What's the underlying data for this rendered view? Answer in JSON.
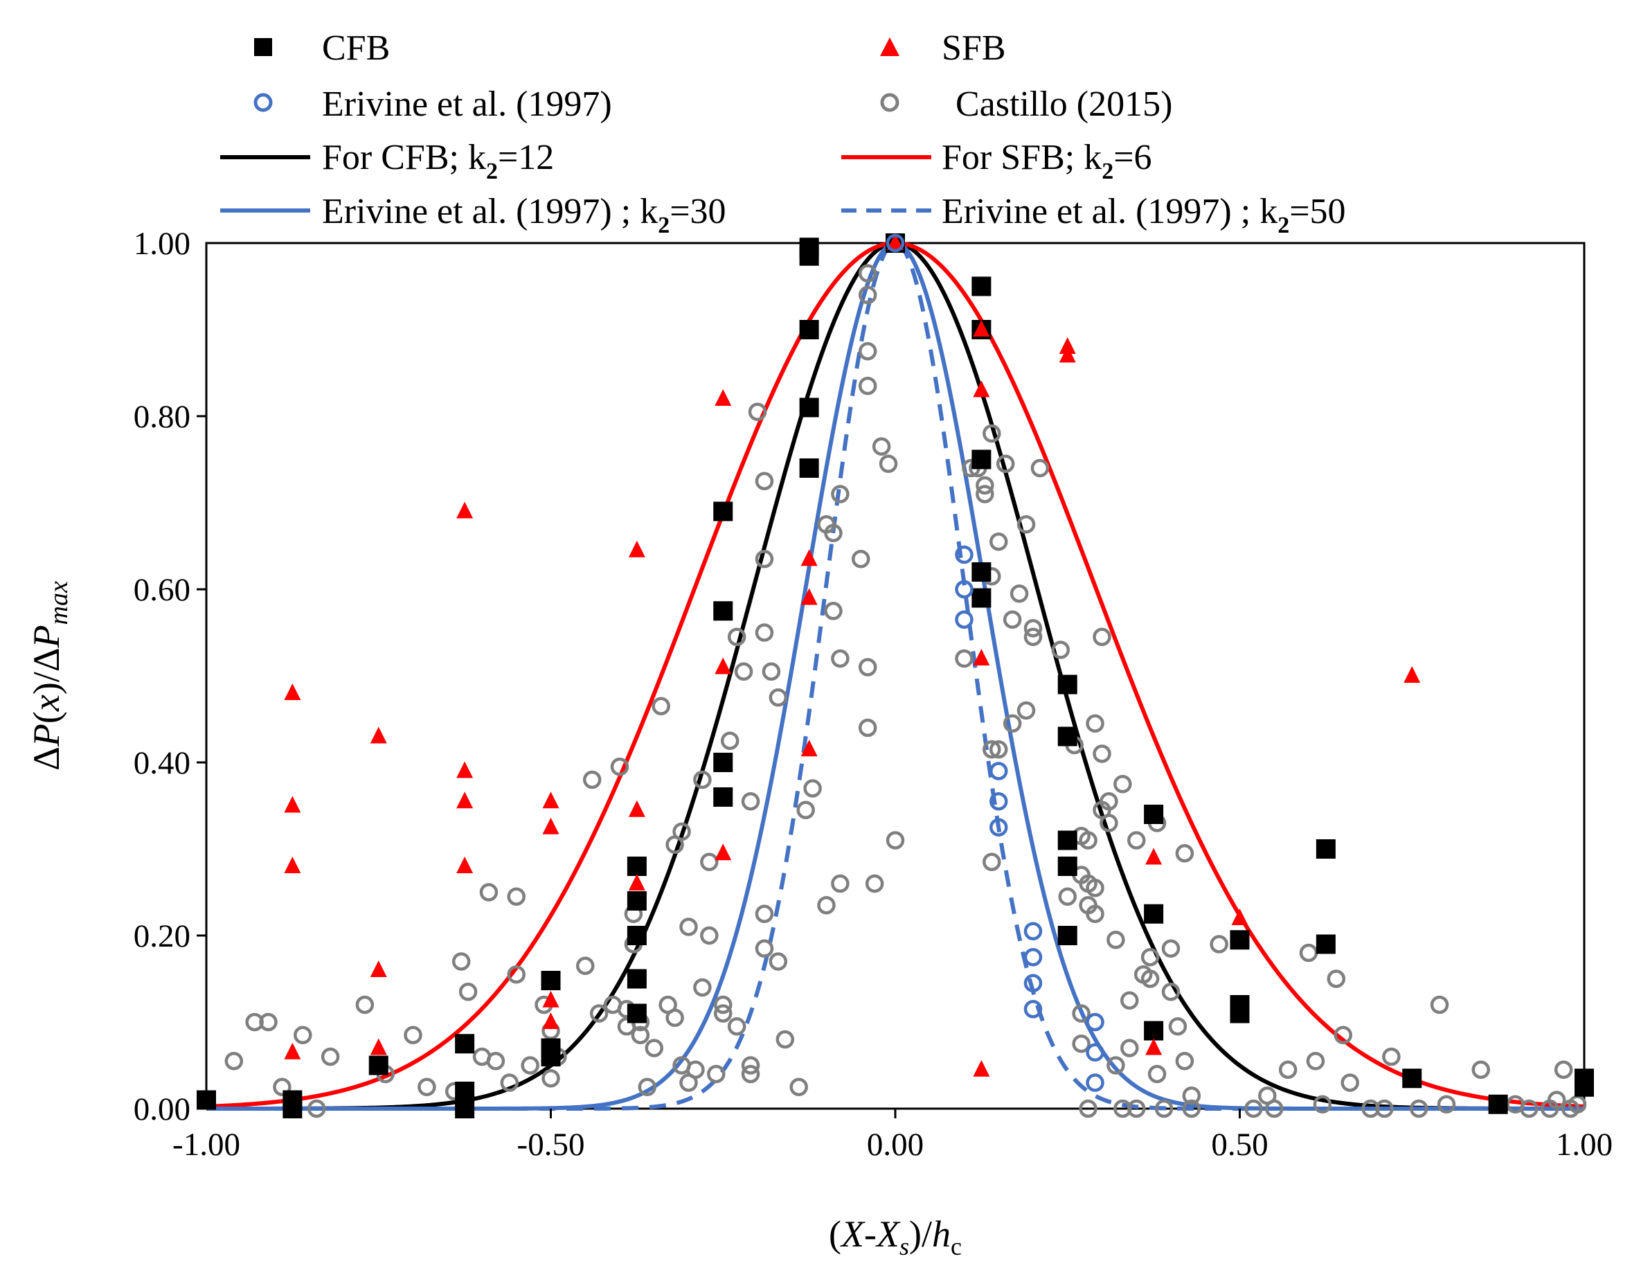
{
  "colors": {
    "cfb": "#000000",
    "sfb": "#ff0000",
    "erivine": "#4472c4",
    "castillo": "#7f7f7f"
  },
  "legend": {
    "cfb": "CFB",
    "sfb": "SFB",
    "erivine_data": "Erivine et al. (1997)",
    "castillo_data": "Castillo (2015)",
    "cfb_fit": {
      "text": "For CFB; k",
      "sub": "2",
      "rest": "=12"
    },
    "sfb_fit": {
      "text": "For SFB; k",
      "sub": "2",
      "rest": "=6"
    },
    "erivine30": {
      "text": "Erivine et al. (1997) ; k",
      "sub": "2",
      "rest": "=30"
    },
    "erivine50": {
      "text": "Erivine et al. (1997) ; k",
      "sub": "2",
      "rest": "=50"
    }
  },
  "chart_data": {
    "type": "scatter",
    "xlabel": "(X-Xs)/hc",
    "ylabel": "ΔP(x)/ΔPmax",
    "xlim": [
      -1.0,
      1.0
    ],
    "ylim": [
      0.0,
      1.0
    ],
    "xticks": [
      "-1.00",
      "-0.50",
      "0.00",
      "0.50",
      "1.00"
    ],
    "yticks": [
      "0.00",
      "0.20",
      "0.40",
      "0.60",
      "0.80",
      "1.00"
    ],
    "grid": false,
    "legend_position": "top",
    "series": [
      {
        "name": "CFB",
        "kind": "markers",
        "marker": "square",
        "color": "#000000",
        "points": [
          [
            -1.0,
            0.01
          ],
          [
            -0.875,
            0.0
          ],
          [
            -0.875,
            0.01
          ],
          [
            -0.75,
            0.05
          ],
          [
            -0.625,
            0.0
          ],
          [
            -0.625,
            0.02
          ],
          [
            -0.625,
            0.075
          ],
          [
            -0.5,
            0.06
          ],
          [
            -0.5,
            0.07
          ],
          [
            -0.5,
            0.148
          ],
          [
            -0.375,
            0.11
          ],
          [
            -0.375,
            0.15
          ],
          [
            -0.375,
            0.2
          ],
          [
            -0.375,
            0.24
          ],
          [
            -0.375,
            0.28
          ],
          [
            -0.25,
            0.36
          ],
          [
            -0.25,
            0.4
          ],
          [
            -0.25,
            0.575
          ],
          [
            -0.25,
            0.69
          ],
          [
            -0.125,
            0.74
          ],
          [
            -0.125,
            0.81
          ],
          [
            -0.125,
            0.9
          ],
          [
            -0.125,
            0.985
          ],
          [
            -0.125,
            0.995
          ],
          [
            0.0,
            1.0
          ],
          [
            0.125,
            0.59
          ],
          [
            0.125,
            0.62
          ],
          [
            0.125,
            0.75
          ],
          [
            0.125,
            0.9
          ],
          [
            0.125,
            0.95
          ],
          [
            0.25,
            0.2
          ],
          [
            0.25,
            0.28
          ],
          [
            0.25,
            0.31
          ],
          [
            0.25,
            0.43
          ],
          [
            0.25,
            0.49
          ],
          [
            0.375,
            0.09
          ],
          [
            0.375,
            0.225
          ],
          [
            0.375,
            0.34
          ],
          [
            0.5,
            0.11
          ],
          [
            0.5,
            0.12
          ],
          [
            0.5,
            0.195
          ],
          [
            0.625,
            0.19
          ],
          [
            0.625,
            0.3
          ],
          [
            0.75,
            0.035
          ],
          [
            0.875,
            0.005
          ],
          [
            1.0,
            0.025
          ],
          [
            1.0,
            0.035
          ]
        ]
      },
      {
        "name": "SFB",
        "kind": "markers",
        "marker": "triangle",
        "color": "#ff0000",
        "points": [
          [
            -0.875,
            0.065
          ],
          [
            -0.875,
            0.28
          ],
          [
            -0.875,
            0.35
          ],
          [
            -0.875,
            0.48
          ],
          [
            -0.75,
            0.07
          ],
          [
            -0.75,
            0.16
          ],
          [
            -0.75,
            0.43
          ],
          [
            -0.625,
            0.28
          ],
          [
            -0.625,
            0.355
          ],
          [
            -0.625,
            0.39
          ],
          [
            -0.625,
            0.69
          ],
          [
            -0.5,
            0.1
          ],
          [
            -0.5,
            0.125
          ],
          [
            -0.5,
            0.325
          ],
          [
            -0.5,
            0.355
          ],
          [
            -0.375,
            0.26
          ],
          [
            -0.375,
            0.345
          ],
          [
            -0.375,
            0.645
          ],
          [
            -0.25,
            0.295
          ],
          [
            -0.25,
            0.51
          ],
          [
            -0.25,
            0.82
          ],
          [
            -0.125,
            0.415
          ],
          [
            -0.125,
            0.59
          ],
          [
            -0.125,
            0.635
          ],
          [
            0.0,
            1.0
          ],
          [
            0.125,
            0.045
          ],
          [
            0.125,
            0.52
          ],
          [
            0.125,
            0.83
          ],
          [
            0.125,
            0.9
          ],
          [
            0.25,
            0.87
          ],
          [
            0.25,
            0.88
          ],
          [
            0.375,
            0.07
          ],
          [
            0.375,
            0.29
          ],
          [
            0.5,
            0.22
          ],
          [
            0.75,
            0.5
          ]
        ]
      },
      {
        "name": "Erivine et al. (1997)",
        "kind": "markers",
        "marker": "circle-open",
        "color": "#4472c4",
        "points": [
          [
            0.0,
            1.0
          ],
          [
            0.1,
            0.64
          ],
          [
            0.1,
            0.6
          ],
          [
            0.1,
            0.565
          ],
          [
            0.15,
            0.39
          ],
          [
            0.15,
            0.355
          ],
          [
            0.15,
            0.325
          ],
          [
            0.2,
            0.205
          ],
          [
            0.2,
            0.175
          ],
          [
            0.2,
            0.145
          ],
          [
            0.2,
            0.115
          ],
          [
            0.29,
            0.1
          ],
          [
            0.29,
            0.065
          ],
          [
            0.29,
            0.03
          ]
        ]
      },
      {
        "name": "Castillo (2015)",
        "kind": "markers",
        "marker": "circle-open",
        "color": "#7f7f7f",
        "points": [
          [
            -0.96,
            0.055
          ],
          [
            -0.93,
            0.1
          ],
          [
            -0.91,
            0.1
          ],
          [
            -0.89,
            0.025
          ],
          [
            -0.86,
            0.085
          ],
          [
            -0.84,
            0.0
          ],
          [
            -0.82,
            0.06
          ],
          [
            -0.77,
            0.12
          ],
          [
            -0.74,
            0.04
          ],
          [
            -0.7,
            0.085
          ],
          [
            -0.68,
            0.025
          ],
          [
            -0.64,
            0.02
          ],
          [
            -0.63,
            0.17
          ],
          [
            -0.62,
            0.135
          ],
          [
            -0.6,
            0.06
          ],
          [
            -0.59,
            0.25
          ],
          [
            -0.58,
            0.055
          ],
          [
            -0.56,
            0.03
          ],
          [
            -0.55,
            0.245
          ],
          [
            -0.55,
            0.155
          ],
          [
            -0.53,
            0.05
          ],
          [
            -0.51,
            0.12
          ],
          [
            -0.5,
            0.09
          ],
          [
            -0.5,
            0.035
          ],
          [
            -0.49,
            0.06
          ],
          [
            -0.45,
            0.165
          ],
          [
            -0.44,
            0.38
          ],
          [
            -0.43,
            0.11
          ],
          [
            -0.41,
            0.12
          ],
          [
            -0.4,
            0.395
          ],
          [
            -0.39,
            0.115
          ],
          [
            -0.39,
            0.095
          ],
          [
            -0.38,
            0.225
          ],
          [
            -0.38,
            0.19
          ],
          [
            -0.37,
            0.1
          ],
          [
            -0.37,
            0.085
          ],
          [
            -0.36,
            0.025
          ],
          [
            -0.35,
            0.07
          ],
          [
            -0.34,
            0.465
          ],
          [
            -0.33,
            0.12
          ],
          [
            -0.32,
            0.305
          ],
          [
            -0.32,
            0.105
          ],
          [
            -0.31,
            0.32
          ],
          [
            -0.31,
            0.05
          ],
          [
            -0.3,
            0.21
          ],
          [
            -0.3,
            0.03
          ],
          [
            -0.29,
            0.045
          ],
          [
            -0.28,
            0.38
          ],
          [
            -0.28,
            0.14
          ],
          [
            -0.27,
            0.2
          ],
          [
            -0.27,
            0.285
          ],
          [
            -0.26,
            0.04
          ],
          [
            -0.25,
            0.12
          ],
          [
            -0.25,
            0.11
          ],
          [
            -0.24,
            0.425
          ],
          [
            -0.23,
            0.545
          ],
          [
            -0.23,
            0.095
          ],
          [
            -0.22,
            0.505
          ],
          [
            -0.21,
            0.355
          ],
          [
            -0.21,
            0.05
          ],
          [
            -0.21,
            0.04
          ],
          [
            -0.2,
            0.805
          ],
          [
            -0.19,
            0.725
          ],
          [
            -0.19,
            0.635
          ],
          [
            -0.19,
            0.55
          ],
          [
            -0.19,
            0.225
          ],
          [
            -0.19,
            0.185
          ],
          [
            -0.18,
            0.505
          ],
          [
            -0.17,
            0.475
          ],
          [
            -0.17,
            0.17
          ],
          [
            -0.16,
            0.08
          ],
          [
            -0.14,
            0.025
          ],
          [
            -0.13,
            0.345
          ],
          [
            -0.12,
            0.37
          ],
          [
            -0.1,
            0.675
          ],
          [
            -0.1,
            0.235
          ],
          [
            -0.09,
            0.665
          ],
          [
            -0.09,
            0.575
          ],
          [
            -0.08,
            0.71
          ],
          [
            -0.08,
            0.52
          ],
          [
            -0.08,
            0.26
          ],
          [
            -0.05,
            0.635
          ],
          [
            -0.04,
            0.965
          ],
          [
            -0.04,
            0.94
          ],
          [
            -0.04,
            0.875
          ],
          [
            -0.04,
            0.835
          ],
          [
            -0.04,
            0.51
          ],
          [
            -0.04,
            0.44
          ],
          [
            -0.03,
            0.26
          ],
          [
            -0.02,
            0.765
          ],
          [
            -0.01,
            0.745
          ],
          [
            0.0,
            0.31
          ],
          [
            0.1,
            0.52
          ],
          [
            0.11,
            0.74
          ],
          [
            0.12,
            0.74
          ],
          [
            0.13,
            0.72
          ],
          [
            0.13,
            0.71
          ],
          [
            0.14,
            0.78
          ],
          [
            0.14,
            0.615
          ],
          [
            0.14,
            0.415
          ],
          [
            0.14,
            0.285
          ],
          [
            0.15,
            0.655
          ],
          [
            0.15,
            0.415
          ],
          [
            0.16,
            0.745
          ],
          [
            0.17,
            0.445
          ],
          [
            0.17,
            0.565
          ],
          [
            0.18,
            0.595
          ],
          [
            0.19,
            0.675
          ],
          [
            0.19,
            0.46
          ],
          [
            0.2,
            0.545
          ],
          [
            0.2,
            0.555
          ],
          [
            0.21,
            0.74
          ],
          [
            0.24,
            0.53
          ],
          [
            0.25,
            0.31
          ],
          [
            0.25,
            0.28
          ],
          [
            0.25,
            0.245
          ],
          [
            0.26,
            0.42
          ],
          [
            0.27,
            0.315
          ],
          [
            0.27,
            0.27
          ],
          [
            0.27,
            0.11
          ],
          [
            0.27,
            0.075
          ],
          [
            0.28,
            0.31
          ],
          [
            0.28,
            0.26
          ],
          [
            0.28,
            0.235
          ],
          [
            0.28,
            0.0
          ],
          [
            0.29,
            0.445
          ],
          [
            0.29,
            0.255
          ],
          [
            0.29,
            0.225
          ],
          [
            0.3,
            0.545
          ],
          [
            0.3,
            0.41
          ],
          [
            0.3,
            0.345
          ],
          [
            0.31,
            0.355
          ],
          [
            0.31,
            0.33
          ],
          [
            0.32,
            0.05
          ],
          [
            0.32,
            0.195
          ],
          [
            0.33,
            0.375
          ],
          [
            0.33,
            0.0
          ],
          [
            0.34,
            0.125
          ],
          [
            0.34,
            0.07
          ],
          [
            0.35,
            0.31
          ],
          [
            0.35,
            0.0
          ],
          [
            0.36,
            0.155
          ],
          [
            0.37,
            0.15
          ],
          [
            0.37,
            0.175
          ],
          [
            0.38,
            0.33
          ],
          [
            0.38,
            0.04
          ],
          [
            0.39,
            0.0
          ],
          [
            0.4,
            0.185
          ],
          [
            0.4,
            0.135
          ],
          [
            0.41,
            0.095
          ],
          [
            0.42,
            0.295
          ],
          [
            0.42,
            0.055
          ],
          [
            0.43,
            0.015
          ],
          [
            0.43,
            0.0
          ],
          [
            0.47,
            0.19
          ],
          [
            0.52,
            0.0
          ],
          [
            0.54,
            0.015
          ],
          [
            0.55,
            0.0
          ],
          [
            0.57,
            0.045
          ],
          [
            0.6,
            0.18
          ],
          [
            0.61,
            0.055
          ],
          [
            0.62,
            0.005
          ],
          [
            0.64,
            0.15
          ],
          [
            0.65,
            0.085
          ],
          [
            0.66,
            0.03
          ],
          [
            0.69,
            0.0
          ],
          [
            0.71,
            0.0
          ],
          [
            0.72,
            0.06
          ],
          [
            0.76,
            0.0
          ],
          [
            0.79,
            0.12
          ],
          [
            0.8,
            0.005
          ],
          [
            0.85,
            0.045
          ],
          [
            0.9,
            0.005
          ],
          [
            0.92,
            0.0
          ],
          [
            0.95,
            0.0
          ],
          [
            0.96,
            0.01
          ],
          [
            0.97,
            0.045
          ],
          [
            0.98,
            0.0
          ],
          [
            0.99,
            0.005
          ]
        ]
      },
      {
        "name": "For CFB; k2=12",
        "kind": "curve",
        "color": "#000000",
        "dash": "solid",
        "k2": 12
      },
      {
        "name": "For SFB; k2=6",
        "kind": "curve",
        "color": "#ff0000",
        "dash": "solid",
        "k2": 6
      },
      {
        "name": "Erivine et al. (1997) ; k2=30",
        "kind": "curve",
        "color": "#4472c4",
        "dash": "solid",
        "k2": 30
      },
      {
        "name": "Erivine et al. (1997) ; k2=50",
        "kind": "curve",
        "color": "#4472c4",
        "dash": "dashed",
        "k2": 50
      }
    ]
  }
}
